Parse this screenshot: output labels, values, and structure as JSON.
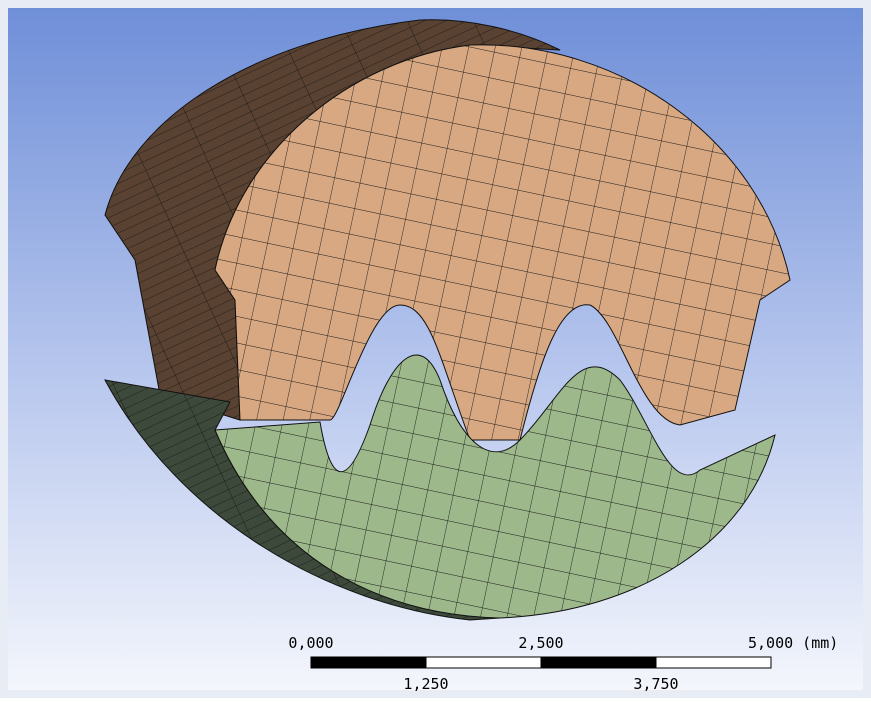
{
  "scale_bar": {
    "top_labels": [
      "0,000",
      "2,500",
      "5,000 (mm)"
    ],
    "bottom_labels": [
      "1,250",
      "3,750"
    ]
  }
}
